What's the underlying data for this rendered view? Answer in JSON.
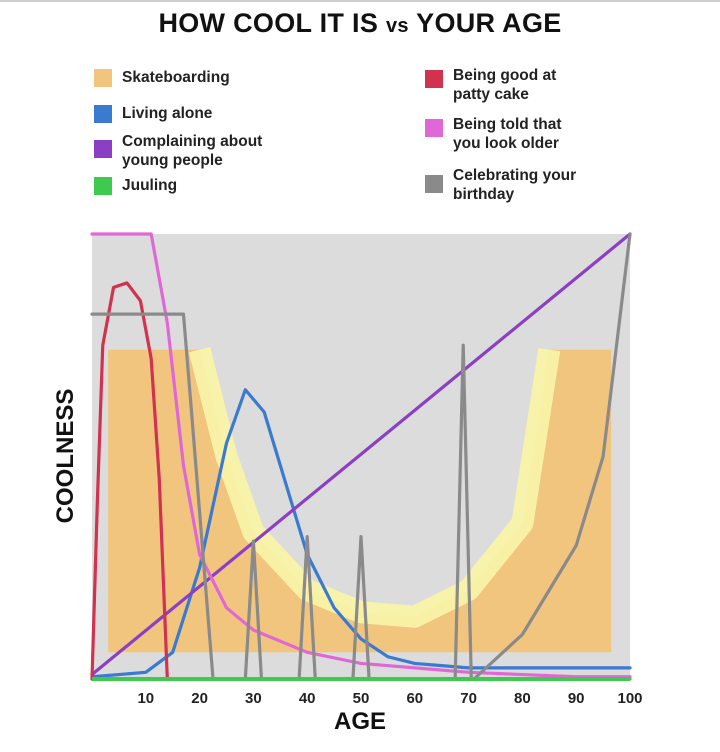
{
  "chart_data": {
    "type": "line",
    "title_main": "HOW COOL IT IS",
    "title_vs": "vs",
    "title_end": "YOUR AGE",
    "xlabel": "AGE",
    "ylabel": "COOLNESS",
    "xlim": [
      0,
      100
    ],
    "ylim": [
      0,
      100
    ],
    "xticks": [
      10,
      20,
      30,
      40,
      50,
      60,
      70,
      80,
      90,
      100
    ],
    "grid": false,
    "legend": "top",
    "series": [
      {
        "name": "Skateboarding",
        "color": "#f2c57e",
        "fill": true,
        "note_color": "#f8f3a8",
        "x": [
          3,
          3,
          20,
          25,
          30,
          40,
          50,
          60,
          70,
          80,
          85,
          96.5,
          96.5
        ],
        "y": [
          6,
          74,
          74,
          50,
          33,
          20,
          15,
          14,
          20,
          35,
          74,
          74,
          6
        ]
      },
      {
        "name": "Living alone",
        "color": "#3a7ad0",
        "x": [
          0,
          10,
          15,
          20,
          25,
          28.5,
          32,
          35,
          40,
          45,
          50,
          55,
          60,
          65,
          70,
          80,
          90,
          100
        ],
        "y": [
          0.5,
          1.5,
          6,
          25,
          53,
          65,
          60,
          48,
          28,
          16,
          9,
          5,
          3.5,
          3,
          2.5,
          2.5,
          2.5,
          2.5
        ]
      },
      {
        "name": "Complaining about young people",
        "color": "#8a3fc4",
        "x": [
          0,
          100
        ],
        "y": [
          1,
          100
        ]
      },
      {
        "name": "Juuling",
        "color": "#3fc94e",
        "x": [
          0,
          100
        ],
        "y": [
          0,
          0
        ]
      },
      {
        "name": "Being good at patty cake",
        "color": "#d0324f",
        "x": [
          0,
          1,
          2,
          4,
          6.5,
          9,
          11,
          12.5,
          13.5,
          14
        ],
        "y": [
          0,
          40,
          75,
          88,
          89,
          85,
          72,
          45,
          15,
          0
        ]
      },
      {
        "name": "Being told that you look older",
        "color": "#e068d6",
        "x": [
          0,
          11,
          14,
          17,
          20,
          25,
          30,
          40,
          50,
          60,
          70,
          80,
          90,
          100
        ],
        "y": [
          100,
          100,
          80,
          48,
          28,
          16,
          11,
          6,
          3.5,
          2.5,
          1.5,
          1,
          0.5,
          0.5
        ]
      },
      {
        "name": "Celebrating your birthday",
        "color": "#8a8a8a",
        "x": [
          0,
          17,
          18.5,
          22.5,
          28.5,
          30,
          31.5,
          38.5,
          40,
          41.5,
          48.5,
          50,
          51.5,
          67.5,
          69,
          70.5,
          71,
          80,
          90,
          95,
          100
        ],
        "y": [
          82,
          82,
          60,
          0,
          0,
          31,
          0,
          0,
          32,
          0,
          0,
          32,
          0,
          0,
          75,
          0,
          0,
          10,
          30,
          50,
          100
        ]
      }
    ]
  },
  "legend": [
    {
      "label": "Skateboarding",
      "color": "#f2c57e"
    },
    {
      "label": "Living alone",
      "color": "#3a7ad0"
    },
    {
      "label": "Complaining about young people",
      "color": "#8a3fc4"
    },
    {
      "label": "Juuling",
      "color": "#3fc94e"
    },
    {
      "label": "Being good at patty cake",
      "color": "#d0324f"
    },
    {
      "label": "Being told that you look older",
      "color": "#e068d6"
    },
    {
      "label": "Celebrating your birthday",
      "color": "#8a8a8a"
    }
  ],
  "colors": {
    "plot_background": "#dcdcdc",
    "axis": "#3fc94e"
  }
}
